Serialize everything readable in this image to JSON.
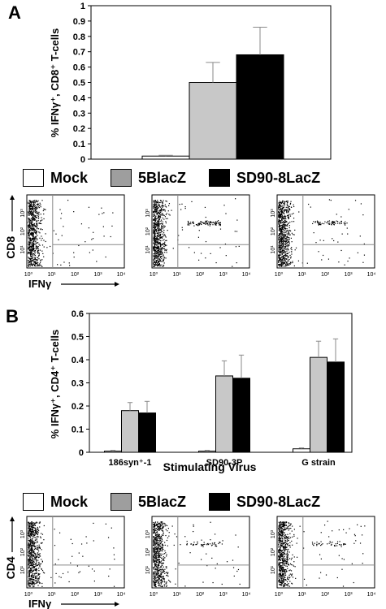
{
  "panels": {
    "a": "A",
    "b": "B"
  },
  "legend": {
    "items": [
      {
        "label": "Mock",
        "color": "#ffffff"
      },
      {
        "label": "5BlacZ",
        "color": "#9e9e9e"
      },
      {
        "label": "SD90-8LacZ",
        "color": "#000000"
      }
    ]
  },
  "chart_data": [
    {
      "type": "bar",
      "panel": "A",
      "ylabel": "% IFNγ⁺, CD8⁺ T-cells",
      "ylim": [
        0,
        1
      ],
      "yticks": [
        "0",
        "0.1",
        "0.2",
        "0.3",
        "0.4",
        "0.5",
        "0.6",
        "0.7",
        "0.8",
        "0.9",
        "1"
      ],
      "grid": false,
      "series": [
        {
          "name": "Mock",
          "color": "#ffffff",
          "values": [
            0.02
          ],
          "errors": [
            0.005
          ]
        },
        {
          "name": "5BlacZ",
          "color": "#c8c8c8",
          "values": [
            0.5
          ],
          "errors": [
            0.13
          ]
        },
        {
          "name": "SD90-8LacZ",
          "color": "#000000",
          "values": [
            0.68
          ],
          "errors": [
            0.18
          ]
        }
      ]
    },
    {
      "type": "bar",
      "panel": "B",
      "ylabel": "% IFNγ⁺, CD4⁺ T-cells",
      "xlabel": "Stimulating Virus",
      "ylim": [
        0,
        0.6
      ],
      "yticks": [
        "0",
        "0.1",
        "0.2",
        "0.3",
        "0.4",
        "0.5",
        "0.6"
      ],
      "categories": [
        "186syn⁺-1",
        "SD90-3P",
        "G strain"
      ],
      "grid": false,
      "series": [
        {
          "name": "Mock",
          "color": "#ffffff",
          "values": [
            0.005,
            0.005,
            0.015
          ],
          "errors": [
            0.003,
            0.003,
            0.004
          ]
        },
        {
          "name": "5BlacZ",
          "color": "#c8c8c8",
          "values": [
            0.18,
            0.33,
            0.41
          ],
          "errors": [
            0.035,
            0.065,
            0.07
          ]
        },
        {
          "name": "SD90-8LacZ",
          "color": "#000000",
          "values": [
            0.17,
            0.32,
            0.39
          ],
          "errors": [
            0.05,
            0.1,
            0.1
          ]
        }
      ]
    }
  ],
  "flow_plots": {
    "a": {
      "y_marker": "CD8",
      "x_marker": "IFNγ",
      "tick_labels": [
        "10⁰",
        "10¹",
        "10²",
        "10³",
        "10⁴"
      ]
    },
    "b": {
      "y_marker": "CD4",
      "x_marker": "IFNγ",
      "tick_labels": [
        "10⁰",
        "10¹",
        "10²",
        "10³",
        "10⁴"
      ]
    }
  }
}
